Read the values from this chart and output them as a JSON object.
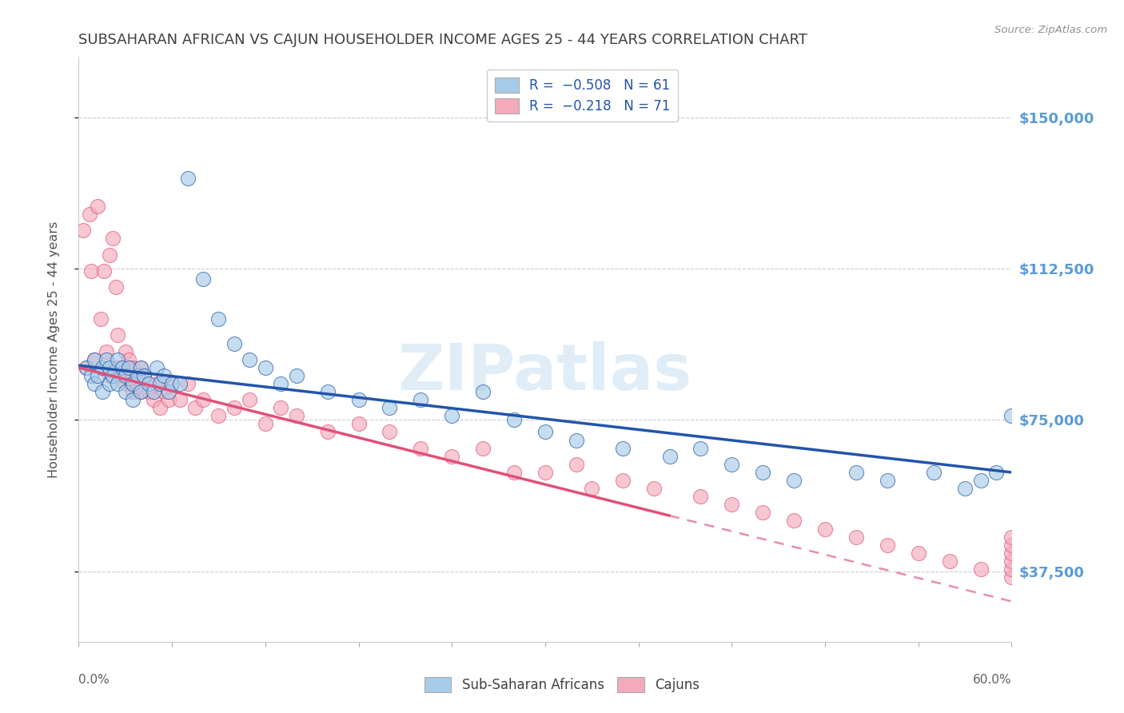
{
  "title": "SUBSAHARAN AFRICAN VS CAJUN HOUSEHOLDER INCOME AGES 25 - 44 YEARS CORRELATION CHART",
  "source": "Source: ZipAtlas.com",
  "ylabel": "Householder Income Ages 25 - 44 years",
  "y_ticks": [
    37500,
    75000,
    112500,
    150000
  ],
  "y_tick_labels": [
    "$37,500",
    "$75,000",
    "$112,500",
    "$150,000"
  ],
  "x_min": 0.0,
  "x_max": 0.6,
  "y_min": 20000,
  "y_max": 165000,
  "series1_label": "Sub-Saharan Africans",
  "series2_label": "Cajuns",
  "series1_color": "#a8cce8",
  "series2_color": "#f4aabb",
  "series1_line_color": "#2255aa",
  "series2_line_color": "#e0507a",
  "watermark": "ZIPatlas",
  "background_color": "#ffffff",
  "grid_color": "#cccccc",
  "title_color": "#404040",
  "right_axis_color": "#5b9bd5",
  "legend_line1": "R =  −0.508   N = 61",
  "legend_line2": "R =  −0.218   N = 71",
  "legend_color1": "#a8cce8",
  "legend_color2": "#f4aabb",
  "scatter1_x": [
    0.005,
    0.008,
    0.01,
    0.01,
    0.012,
    0.015,
    0.015,
    0.018,
    0.02,
    0.02,
    0.022,
    0.025,
    0.025,
    0.028,
    0.03,
    0.03,
    0.032,
    0.035,
    0.035,
    0.038,
    0.04,
    0.04,
    0.042,
    0.045,
    0.048,
    0.05,
    0.052,
    0.055,
    0.058,
    0.06,
    0.065,
    0.07,
    0.08,
    0.09,
    0.1,
    0.11,
    0.12,
    0.13,
    0.14,
    0.16,
    0.18,
    0.2,
    0.22,
    0.24,
    0.26,
    0.28,
    0.3,
    0.32,
    0.35,
    0.38,
    0.4,
    0.42,
    0.44,
    0.46,
    0.5,
    0.52,
    0.55,
    0.57,
    0.58,
    0.59,
    0.6
  ],
  "scatter1_y": [
    88000,
    86000,
    90000,
    84000,
    86000,
    88000,
    82000,
    90000,
    88000,
    84000,
    86000,
    90000,
    84000,
    88000,
    86000,
    82000,
    88000,
    84000,
    80000,
    86000,
    88000,
    82000,
    86000,
    84000,
    82000,
    88000,
    84000,
    86000,
    82000,
    84000,
    84000,
    135000,
    110000,
    100000,
    94000,
    90000,
    88000,
    84000,
    86000,
    82000,
    80000,
    78000,
    80000,
    76000,
    82000,
    75000,
    72000,
    70000,
    68000,
    66000,
    68000,
    64000,
    62000,
    60000,
    62000,
    60000,
    62000,
    58000,
    60000,
    62000,
    76000
  ],
  "scatter2_x": [
    0.003,
    0.005,
    0.007,
    0.008,
    0.01,
    0.012,
    0.014,
    0.016,
    0.018,
    0.02,
    0.02,
    0.022,
    0.024,
    0.025,
    0.025,
    0.028,
    0.03,
    0.03,
    0.032,
    0.034,
    0.035,
    0.035,
    0.038,
    0.04,
    0.04,
    0.042,
    0.045,
    0.048,
    0.05,
    0.052,
    0.055,
    0.058,
    0.06,
    0.065,
    0.07,
    0.075,
    0.08,
    0.09,
    0.1,
    0.11,
    0.12,
    0.13,
    0.14,
    0.16,
    0.18,
    0.2,
    0.22,
    0.24,
    0.26,
    0.28,
    0.3,
    0.32,
    0.33,
    0.35,
    0.37,
    0.4,
    0.42,
    0.44,
    0.46,
    0.48,
    0.5,
    0.52,
    0.54,
    0.56,
    0.58,
    0.6,
    0.6,
    0.6,
    0.6,
    0.6,
    0.6
  ],
  "scatter2_y": [
    122000,
    88000,
    126000,
    112000,
    90000,
    128000,
    100000,
    112000,
    92000,
    116000,
    86000,
    120000,
    108000,
    88000,
    96000,
    86000,
    92000,
    84000,
    90000,
    84000,
    88000,
    82000,
    86000,
    88000,
    82000,
    86000,
    82000,
    80000,
    84000,
    78000,
    82000,
    80000,
    84000,
    80000,
    84000,
    78000,
    80000,
    76000,
    78000,
    80000,
    74000,
    78000,
    76000,
    72000,
    74000,
    72000,
    68000,
    66000,
    68000,
    62000,
    62000,
    64000,
    58000,
    60000,
    58000,
    56000,
    54000,
    52000,
    50000,
    48000,
    46000,
    44000,
    42000,
    40000,
    38000,
    36000,
    38000,
    40000,
    42000,
    44000,
    46000
  ]
}
